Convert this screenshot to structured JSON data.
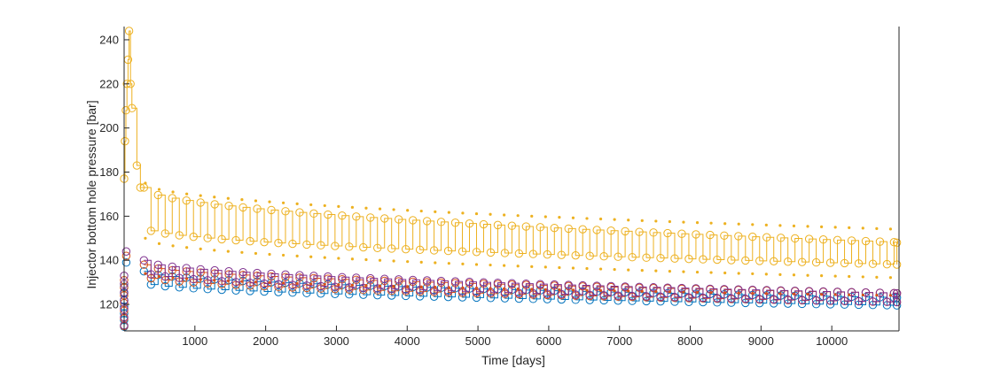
{
  "chart_data": {
    "type": "scatter",
    "title": "",
    "xlabel": "Time [days]",
    "ylabel": "Injector bottom hole pressure [bar]",
    "xlim": [
      0,
      10950
    ],
    "ylim": [
      108,
      246
    ],
    "xticks": [
      1000,
      2000,
      3000,
      4000,
      5000,
      6000,
      7000,
      8000,
      9000,
      10000
    ],
    "yticks": [
      120,
      140,
      160,
      180,
      200,
      220,
      240
    ],
    "grid": false,
    "legend": "none",
    "colors": {
      "orange": "#EDB120",
      "red": "#D95319",
      "blue": "#0072BD",
      "purple": "#7E2F8E",
      "violet": "#5B4BB5"
    },
    "series": [
      {
        "color": "orange",
        "style": "step-circles",
        "x_start": 100,
        "x_step": 100,
        "high_start": 173,
        "high_end": 148,
        "low_start": 155,
        "low_end": 138,
        "early_points": [
          [
            0,
            177
          ],
          [
            12,
            194
          ],
          [
            25,
            208
          ],
          [
            40,
            220
          ],
          [
            55,
            231
          ],
          [
            70,
            244
          ],
          [
            90,
            220
          ],
          [
            110,
            209
          ],
          [
            180,
            183
          ],
          [
            230,
            173
          ]
        ]
      },
      {
        "color": "orange",
        "style": "dots-upper",
        "start": 175,
        "end": 154
      },
      {
        "color": "orange",
        "style": "dots-lower",
        "start": 150,
        "end": 132
      },
      {
        "color": "blue",
        "style": "step-circles",
        "high_start": 135,
        "high_end": 123,
        "low_start": 130,
        "low_end": 119.5
      },
      {
        "color": "red",
        "style": "step-circles",
        "high_start": 138,
        "high_end": 125,
        "low_start": 133,
        "low_end": 121
      },
      {
        "color": "purple",
        "style": "step-circles",
        "high_start": 140,
        "high_end": 125,
        "low_start": 135,
        "low_end": 121
      },
      {
        "color": "red",
        "style": "dots-upper",
        "start": 134,
        "end": 124
      }
    ]
  }
}
